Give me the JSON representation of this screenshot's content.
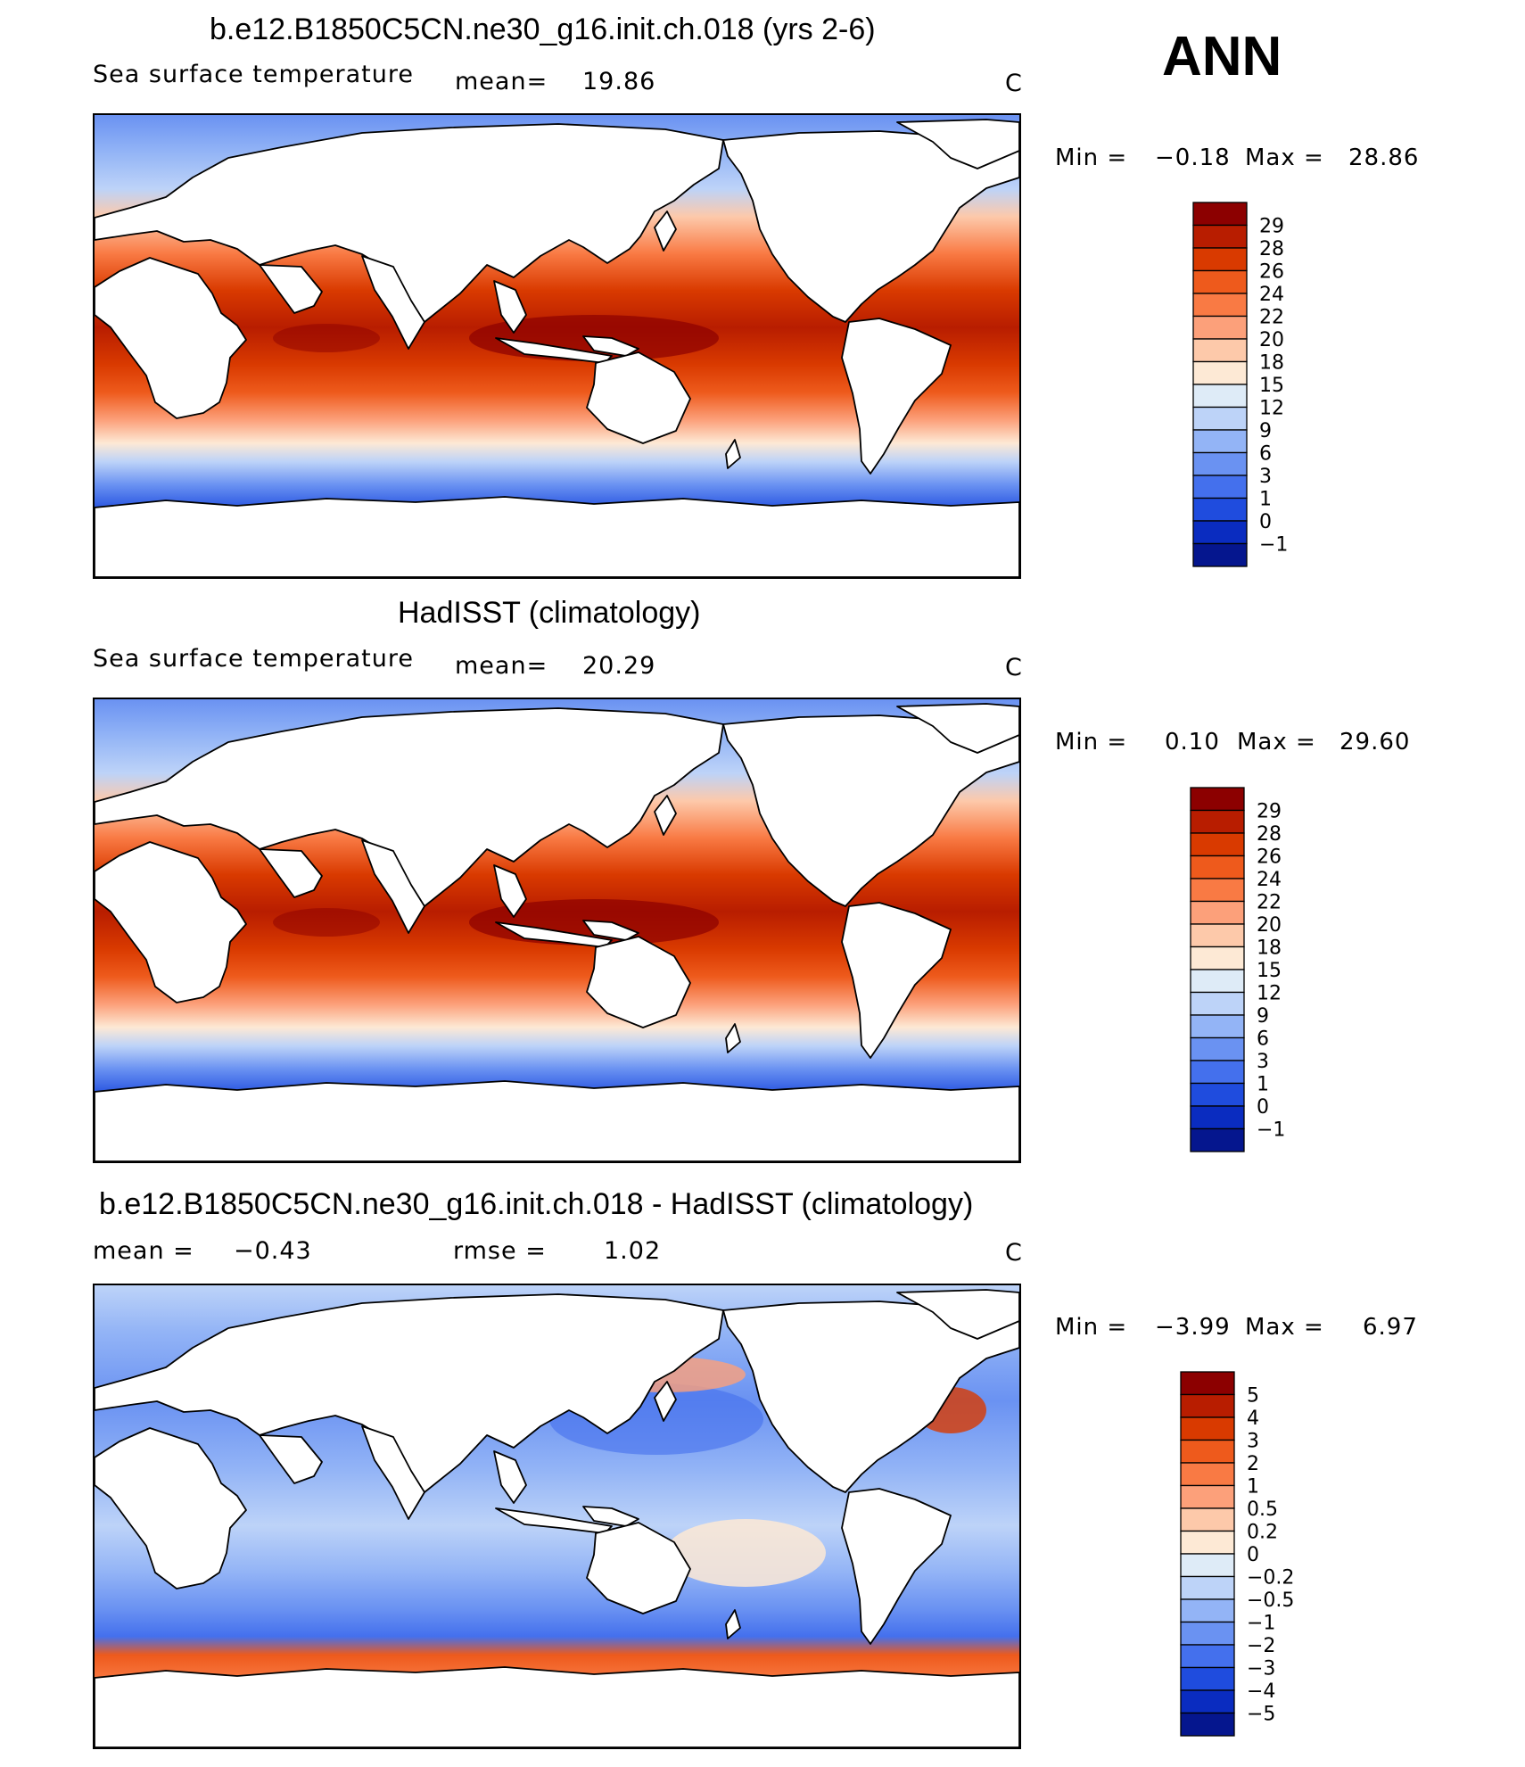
{
  "season": "ANN",
  "panels": [
    {
      "title": "b.e12.B1850C5CN.ne30_g16.init.ch.018 (yrs 2-6)",
      "field": "Sea surface temperature",
      "stat1_label": "mean=",
      "stat1_value": "19.86",
      "stat2_label": "",
      "stat2_value": "",
      "units": "C",
      "min_label": "Min =",
      "min_value": "−0.18",
      "max_label": "Max =",
      "max_value": "28.86",
      "colorbar": {
        "levels": [
          "29",
          "28",
          "26",
          "24",
          "22",
          "20",
          "18",
          "15",
          "12",
          "9",
          "6",
          "3",
          "1",
          "0",
          "−1"
        ],
        "colors": [
          "#8c0000",
          "#b81d00",
          "#d93a00",
          "#ee5a1c",
          "#f97a44",
          "#fca07a",
          "#fdc9aa",
          "#fde9d5",
          "#deebf7",
          "#bdd3f8",
          "#93b4f6",
          "#6a92f2",
          "#4470ed",
          "#1f4cde",
          "#0a2cc0",
          "#05168e"
        ]
      }
    },
    {
      "title": "HadISST (climatology)",
      "field": "Sea surface temperature",
      "stat1_label": "mean=",
      "stat1_value": "20.29",
      "stat2_label": "",
      "stat2_value": "",
      "units": "C",
      "min_label": "Min =",
      "min_value": "0.10",
      "max_label": "Max =",
      "max_value": "29.60",
      "colorbar": {
        "levels": [
          "29",
          "28",
          "26",
          "24",
          "22",
          "20",
          "18",
          "15",
          "12",
          "9",
          "6",
          "3",
          "1",
          "0",
          "−1"
        ],
        "colors": [
          "#8c0000",
          "#b81d00",
          "#d93a00",
          "#ee5a1c",
          "#f97a44",
          "#fca07a",
          "#fdc9aa",
          "#fde9d5",
          "#deebf7",
          "#bdd3f8",
          "#93b4f6",
          "#6a92f2",
          "#4470ed",
          "#1f4cde",
          "#0a2cc0",
          "#05168e"
        ]
      }
    },
    {
      "title": "b.e12.B1850C5CN.ne30_g16.init.ch.018 - HadISST (climatology)",
      "field": "",
      "stat1_label": "mean =",
      "stat1_value": "−0.43",
      "stat2_label": "rmse =",
      "stat2_value": "1.02",
      "units": "C",
      "min_label": "Min =",
      "min_value": "−3.99",
      "max_label": "Max =",
      "max_value": "6.97",
      "colorbar": {
        "levels": [
          "5",
          "4",
          "3",
          "2",
          "1",
          "0.5",
          "0.2",
          "0",
          "−0.2",
          "−0.5",
          "−1",
          "−2",
          "−3",
          "−4",
          "−5"
        ],
        "colors": [
          "#8c0000",
          "#b81d00",
          "#d93a00",
          "#ee5a1c",
          "#f97a44",
          "#fca07a",
          "#fdc9aa",
          "#fde9d5",
          "#deebf7",
          "#bdd3f8",
          "#93b4f6",
          "#6a92f2",
          "#4470ed",
          "#1f4cde",
          "#0a2cc0",
          "#05168e"
        ]
      }
    }
  ]
}
